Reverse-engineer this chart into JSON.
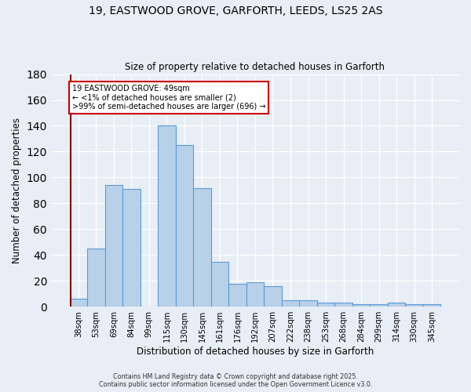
{
  "title1": "19, EASTWOOD GROVE, GARFORTH, LEEDS, LS25 2AS",
  "title2": "Size of property relative to detached houses in Garforth",
  "xlabel": "Distribution of detached houses by size in Garforth",
  "ylabel": "Number of detached properties",
  "categories": [
    "38sqm",
    "53sqm",
    "69sqm",
    "84sqm",
    "99sqm",
    "115sqm",
    "130sqm",
    "145sqm",
    "161sqm",
    "176sqm",
    "192sqm",
    "207sqm",
    "222sqm",
    "238sqm",
    "253sqm",
    "268sqm",
    "284sqm",
    "299sqm",
    "314sqm",
    "330sqm",
    "345sqm"
  ],
  "values": [
    6,
    45,
    94,
    91,
    0,
    140,
    125,
    92,
    35,
    18,
    19,
    16,
    5,
    5,
    3,
    3,
    2,
    2,
    3,
    2,
    2
  ],
  "bar_color": "#b8d0e8",
  "bar_edge_color": "#5b9bd5",
  "vline_color": "#8b0000",
  "annotation_lines": [
    "19 EASTWOOD GROVE: 49sqm",
    "← <1% of detached houses are smaller (2)",
    ">99% of semi-detached houses are larger (696) →"
  ],
  "annotation_box_color": "#ffffff",
  "annotation_box_edge": "#cc0000",
  "ylim": [
    0,
    180
  ],
  "yticks": [
    0,
    20,
    40,
    60,
    80,
    100,
    120,
    140,
    160,
    180
  ],
  "footer1": "Contains HM Land Registry data © Crown copyright and database right 2025.",
  "footer2": "Contains public sector information licensed under the Open Government Licence v3.0.",
  "bg_color": "#e8eef5",
  "plot_bg_color": "#e8eef5"
}
